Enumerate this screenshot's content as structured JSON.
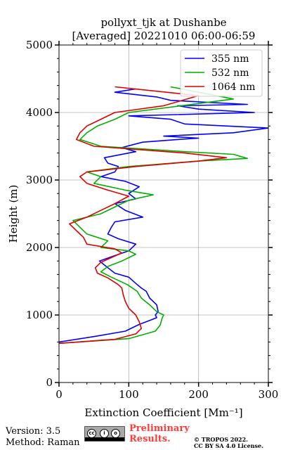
{
  "chart_data": {
    "type": "line",
    "title": "pollyxt_tjk at Dushanbe",
    "subtitle": "[Averaged] 20221010 06:00-06:59",
    "xlabel": "Extinction Coefficient [Mm⁻¹]",
    "ylabel": "Height (m)",
    "xlim": [
      0,
      300
    ],
    "ylim": [
      0,
      5000
    ],
    "xticks": [
      0,
      100,
      200,
      300
    ],
    "yticks": [
      0,
      1000,
      2000,
      3000,
      4000,
      5000
    ],
    "grid": true,
    "legend_position": "top-right",
    "series": [
      {
        "name": "355 nm",
        "color": "#0000ff",
        "x": [
          0,
          50,
          95,
          115,
          130,
          140,
          138,
          142,
          140,
          130,
          125,
          118,
          112,
          100,
          80,
          70,
          58,
          80,
          100,
          110,
          85,
          70,
          75,
          80,
          120,
          95,
          80,
          110,
          100,
          115,
          95,
          60,
          80,
          85,
          70,
          65,
          110,
          90,
          120,
          170,
          200,
          150,
          250,
          300,
          180,
          160,
          100,
          280,
          200,
          170,
          270,
          160,
          140,
          80,
          110
        ],
        "y": [
          600,
          680,
          760,
          860,
          920,
          960,
          1000,
          1050,
          1150,
          1250,
          1350,
          1400,
          1450,
          1560,
          1620,
          1700,
          1800,
          1880,
          1950,
          2050,
          2130,
          2200,
          2300,
          2380,
          2450,
          2550,
          2650,
          2720,
          2800,
          2900,
          2980,
          3050,
          3120,
          3200,
          3250,
          3330,
          3420,
          3480,
          3560,
          3600,
          3620,
          3650,
          3700,
          3770,
          3830,
          3900,
          3950,
          4000,
          4050,
          4100,
          4120,
          4180,
          4230,
          4300,
          4350
        ]
      },
      {
        "name": "532 nm",
        "color": "#00b000",
        "x": [
          0,
          100,
          138,
          145,
          148,
          150,
          140,
          130,
          118,
          112,
          98,
          75,
          60,
          70,
          90,
          110,
          100,
          60,
          70,
          40,
          30,
          20,
          60,
          80,
          100,
          135,
          95,
          50,
          60,
          40,
          100,
          200,
          270,
          250,
          180,
          60,
          30,
          40,
          55,
          80,
          100,
          250,
          160
        ],
        "y": [
          580,
          650,
          760,
          850,
          960,
          1000,
          1050,
          1150,
          1250,
          1350,
          1450,
          1560,
          1640,
          1720,
          1800,
          1900,
          1950,
          2000,
          2100,
          2200,
          2300,
          2400,
          2500,
          2600,
          2700,
          2780,
          2850,
          2950,
          3050,
          3120,
          3200,
          3280,
          3320,
          3380,
          3420,
          3500,
          3600,
          3700,
          3800,
          3900,
          4000,
          4200,
          4380
        ]
      },
      {
        "name": "1064 nm",
        "color": "#dd0000",
        "x": [
          0,
          80,
          110,
          118,
          115,
          110,
          100,
          95,
          92,
          90,
          85,
          70,
          55,
          52,
          60,
          75,
          90,
          80,
          40,
          35,
          25,
          15,
          40,
          60,
          80,
          100,
          70,
          40,
          30,
          40,
          110,
          200,
          240,
          180,
          50,
          25,
          30,
          40,
          60,
          80,
          150,
          200,
          80
        ],
        "y": [
          580,
          640,
          720,
          800,
          900,
          1000,
          1100,
          1200,
          1300,
          1400,
          1450,
          1550,
          1620,
          1700,
          1780,
          1850,
          1920,
          1980,
          2050,
          2150,
          2250,
          2350,
          2450,
          2550,
          2650,
          2760,
          2850,
          2950,
          3050,
          3120,
          3200,
          3280,
          3330,
          3400,
          3500,
          3600,
          3700,
          3800,
          3900,
          4000,
          4100,
          4250,
          4380
        ]
      }
    ]
  },
  "footer": {
    "version": "Version: 3.5",
    "method": "Method: Raman",
    "badge": "CC BY SA",
    "prelim_line1": "Preliminary",
    "prelim_line2": "Results.",
    "copyright_line1": "© TROPOS 2022.",
    "copyright_line2": "CC BY SA 4.0 License."
  },
  "colors": {
    "prelim": "#ff3b3b"
  }
}
